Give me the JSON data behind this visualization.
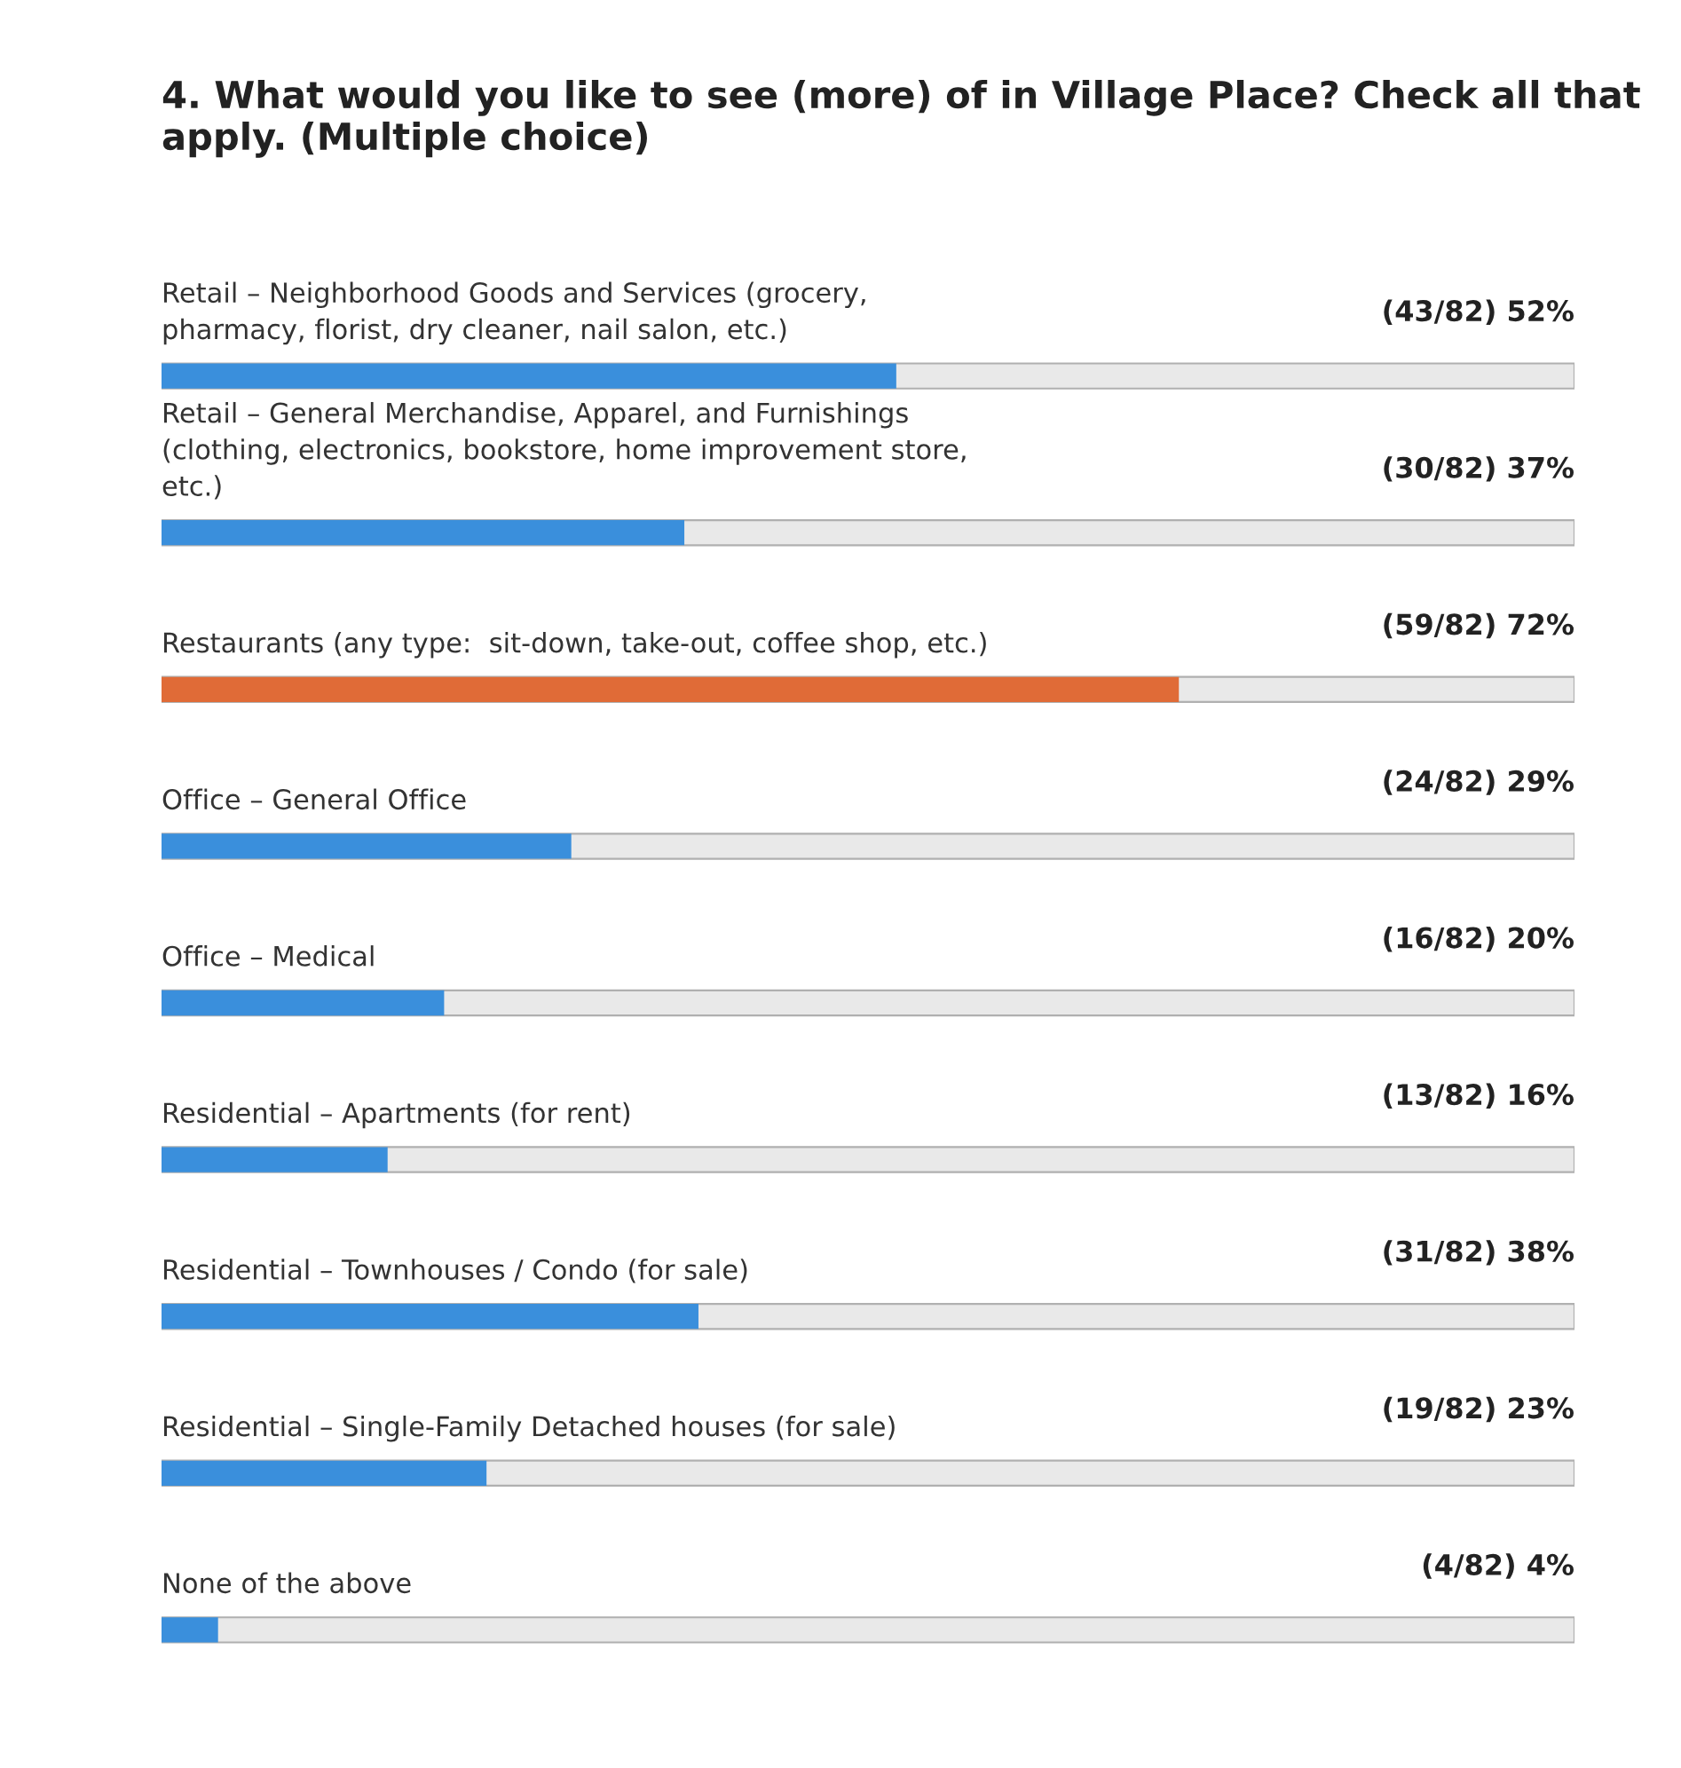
{
  "chart_data": {
    "type": "bar",
    "orientation": "horizontal",
    "title": "4. What would you like to see (more) of in Village Place? Check all that apply. (Multiple choice)",
    "categories": [
      "Retail – Neighborhood Goods and Services (grocery,\npharmacy, florist, dry cleaner, nail salon, etc.)",
      "Retail – General Merchandise, Apparel, and Furnishings\n(clothing, electronics, bookstore, home improvement store,\netc.)",
      "Restaurants (any type:  sit-down, take-out, coffee shop, etc.)",
      "Office – General Office",
      "Office – Medical",
      "Residential – Apartments (for rent)",
      "Residential – Townhouses / Condo (for sale)",
      "Residential – Single-Family Detached houses (for sale)",
      "None of the above"
    ],
    "values": [
      52,
      37,
      72,
      29,
      20,
      16,
      38,
      23,
      4
    ],
    "value_labels": [
      "(43/82) 52%",
      "(30/82) 37%",
      "(59/82) 72%",
      "(24/82) 29%",
      "(16/82) 20%",
      "(13/82) 16%",
      "(31/82) 38%",
      "(19/82) 23%",
      "(4/82) 4%"
    ],
    "colors": [
      "#3a8fdc",
      "#3a8fdc",
      "#e06b37",
      "#3a8fdc",
      "#3a8fdc",
      "#3a8fdc",
      "#3a8fdc",
      "#3a8fdc",
      "#3a8fdc"
    ],
    "xlim": [
      0,
      100
    ]
  }
}
